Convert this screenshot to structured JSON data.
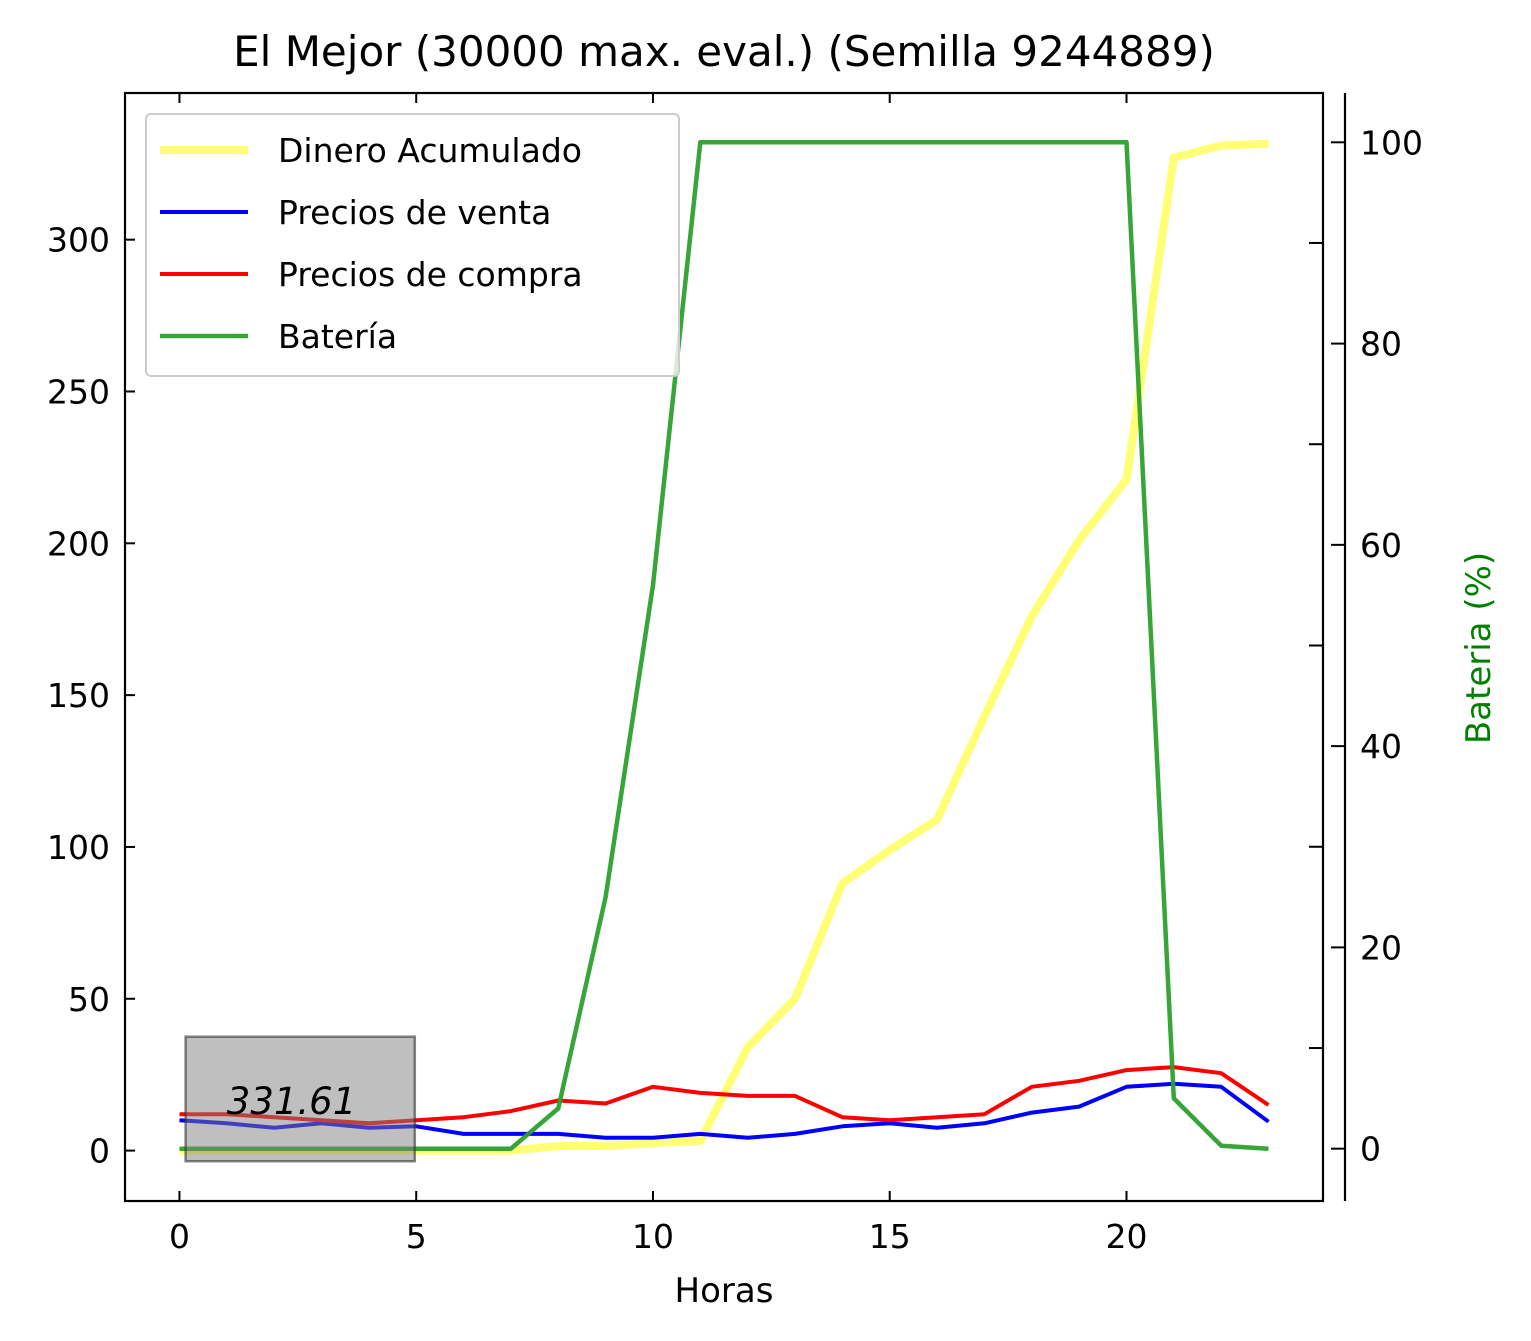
{
  "chart_data": {
    "type": "line",
    "title": "El Mejor (30000 max. eval.) (Semilla 9244889)",
    "xlabel": "Horas",
    "ylabel": "",
    "y2label": "Bateria (%)",
    "xlim": [
      -1.15,
      24.15
    ],
    "ylim": [
      -16.6,
      348.3
    ],
    "y2lim": [
      -5.2,
      104.9
    ],
    "xticks": [
      0,
      5,
      10,
      15,
      20
    ],
    "yticks": [
      0,
      50,
      100,
      150,
      200,
      250,
      300
    ],
    "y2ticks": [
      0,
      20,
      40,
      60,
      80,
      100
    ],
    "grid": false,
    "legend_position": "top-left",
    "x": [
      0,
      1,
      2,
      3,
      4,
      5,
      6,
      7,
      8,
      9,
      10,
      11,
      12,
      13,
      14,
      15,
      16,
      17,
      18,
      19,
      20,
      21,
      22,
      23
    ],
    "series": [
      {
        "name": "Dinero Acumulado",
        "axis": "left",
        "color": "#ffff66",
        "values": [
          0,
          0,
          0,
          0,
          0,
          0,
          0,
          0,
          1.5,
          1.5,
          2.5,
          3.2,
          34,
          50,
          88,
          99,
          109,
          143,
          176,
          201,
          221,
          327,
          331,
          331.61
        ]
      },
      {
        "name": "Precios de venta",
        "axis": "left",
        "color": "#0000ff",
        "values": [
          10,
          9,
          7.5,
          9,
          7.5,
          8,
          5.5,
          5.5,
          5.5,
          4.2,
          4.2,
          5.5,
          4.2,
          5.5,
          8,
          9,
          7.5,
          9,
          12.5,
          14.5,
          21,
          22,
          21,
          9.5
        ]
      },
      {
        "name": "Precios de compra",
        "axis": "left",
        "color": "#ff0000",
        "values": [
          12,
          12,
          11,
          10,
          9,
          10,
          11,
          13,
          16.5,
          15.5,
          21,
          19,
          18,
          18,
          11,
          10,
          11,
          12,
          21,
          23,
          26.5,
          27.5,
          25.5,
          15
        ]
      },
      {
        "name": "Batería",
        "axis": "right",
        "color": "#2ca02c",
        "values": [
          0,
          0,
          0,
          0,
          0,
          0,
          0,
          0,
          4,
          25,
          56,
          100,
          100,
          100,
          100,
          100,
          100,
          100,
          100,
          100,
          100,
          5,
          0.3,
          0
        ]
      }
    ],
    "annotation": {
      "text": "331.61",
      "x": 1,
      "y": 12
    }
  }
}
